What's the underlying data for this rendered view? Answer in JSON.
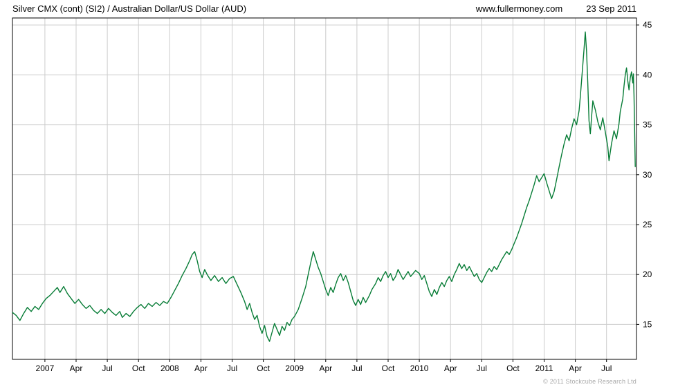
{
  "header": {
    "title": "Silver CMX (cont) (SI2) / Australian Dollar/US Dollar (AUD)",
    "website": "www.fullermoney.com",
    "date": "23 Sep 2011"
  },
  "footer": {
    "copyright": "© 2011 Stockcube Research Ltd"
  },
  "colors": {
    "line": "#077c36",
    "grid": "#cccccc",
    "axis": "#000000",
    "text": "#000000",
    "copyright": "#a9a9a9"
  },
  "chart_data": {
    "type": "line",
    "title": "Silver CMX (cont) (SI2) / Australian Dollar/US Dollar (AUD)",
    "xlabel": "",
    "ylabel": "",
    "grid": true,
    "legend_position": "none",
    "x_axis": {
      "range": [
        2006.74,
        2011.74
      ],
      "ticks": [
        {
          "pos": 2007.0,
          "label": "2007"
        },
        {
          "pos": 2007.25,
          "label": "Apr"
        },
        {
          "pos": 2007.5,
          "label": "Jul"
        },
        {
          "pos": 2007.75,
          "label": "Oct"
        },
        {
          "pos": 2008.0,
          "label": "2008"
        },
        {
          "pos": 2008.25,
          "label": "Apr"
        },
        {
          "pos": 2008.5,
          "label": "Jul"
        },
        {
          "pos": 2008.75,
          "label": "Oct"
        },
        {
          "pos": 2009.0,
          "label": "2009"
        },
        {
          "pos": 2009.25,
          "label": "Apr"
        },
        {
          "pos": 2009.5,
          "label": "Jul"
        },
        {
          "pos": 2009.75,
          "label": "Oct"
        },
        {
          "pos": 2010.0,
          "label": "2010"
        },
        {
          "pos": 2010.25,
          "label": "Apr"
        },
        {
          "pos": 2010.5,
          "label": "Jul"
        },
        {
          "pos": 2010.75,
          "label": "Oct"
        },
        {
          "pos": 2011.0,
          "label": "2011"
        },
        {
          "pos": 2011.25,
          "label": "Apr"
        },
        {
          "pos": 2011.5,
          "label": "Jul"
        }
      ]
    },
    "y_axis": {
      "side": "right",
      "range": [
        11.5,
        45.7
      ],
      "ticks": [
        15,
        20,
        25,
        30,
        35,
        40,
        45
      ]
    },
    "series": [
      {
        "name": "Silver CMX (cont) (SI2) in AUD",
        "color": "#077c36",
        "points": [
          [
            2006.74,
            16.2
          ],
          [
            2006.77,
            15.9
          ],
          [
            2006.8,
            15.4
          ],
          [
            2006.83,
            16.1
          ],
          [
            2006.86,
            16.7
          ],
          [
            2006.89,
            16.3
          ],
          [
            2006.92,
            16.8
          ],
          [
            2006.95,
            16.5
          ],
          [
            2006.98,
            17.1
          ],
          [
            2007.01,
            17.6
          ],
          [
            2007.04,
            17.9
          ],
          [
            2007.07,
            18.3
          ],
          [
            2007.1,
            18.7
          ],
          [
            2007.12,
            18.2
          ],
          [
            2007.15,
            18.8
          ],
          [
            2007.18,
            18.1
          ],
          [
            2007.21,
            17.6
          ],
          [
            2007.24,
            17.1
          ],
          [
            2007.27,
            17.5
          ],
          [
            2007.3,
            17.0
          ],
          [
            2007.33,
            16.6
          ],
          [
            2007.36,
            16.9
          ],
          [
            2007.39,
            16.4
          ],
          [
            2007.42,
            16.1
          ],
          [
            2007.45,
            16.5
          ],
          [
            2007.48,
            16.1
          ],
          [
            2007.51,
            16.6
          ],
          [
            2007.54,
            16.2
          ],
          [
            2007.57,
            15.9
          ],
          [
            2007.6,
            16.3
          ],
          [
            2007.62,
            15.7
          ],
          [
            2007.65,
            16.1
          ],
          [
            2007.68,
            15.8
          ],
          [
            2007.71,
            16.3
          ],
          [
            2007.74,
            16.7
          ],
          [
            2007.77,
            17.0
          ],
          [
            2007.8,
            16.6
          ],
          [
            2007.83,
            17.1
          ],
          [
            2007.86,
            16.8
          ],
          [
            2007.89,
            17.2
          ],
          [
            2007.92,
            16.9
          ],
          [
            2007.95,
            17.3
          ],
          [
            2007.98,
            17.1
          ],
          [
            2008.01,
            17.7
          ],
          [
            2008.04,
            18.4
          ],
          [
            2008.07,
            19.1
          ],
          [
            2008.1,
            19.9
          ],
          [
            2008.13,
            20.6
          ],
          [
            2008.16,
            21.4
          ],
          [
            2008.18,
            22.0
          ],
          [
            2008.2,
            22.3
          ],
          [
            2008.22,
            21.4
          ],
          [
            2008.24,
            20.3
          ],
          [
            2008.26,
            19.7
          ],
          [
            2008.28,
            20.5
          ],
          [
            2008.3,
            20.0
          ],
          [
            2008.33,
            19.4
          ],
          [
            2008.36,
            19.9
          ],
          [
            2008.39,
            19.3
          ],
          [
            2008.42,
            19.7
          ],
          [
            2008.45,
            19.1
          ],
          [
            2008.48,
            19.6
          ],
          [
            2008.51,
            19.8
          ],
          [
            2008.54,
            19.0
          ],
          [
            2008.57,
            18.2
          ],
          [
            2008.6,
            17.3
          ],
          [
            2008.62,
            16.5
          ],
          [
            2008.64,
            17.1
          ],
          [
            2008.66,
            16.2
          ],
          [
            2008.68,
            15.5
          ],
          [
            2008.7,
            15.9
          ],
          [
            2008.72,
            14.8
          ],
          [
            2008.74,
            14.1
          ],
          [
            2008.76,
            14.9
          ],
          [
            2008.78,
            13.8
          ],
          [
            2008.8,
            13.3
          ],
          [
            2008.82,
            14.2
          ],
          [
            2008.84,
            15.1
          ],
          [
            2008.86,
            14.5
          ],
          [
            2008.88,
            13.9
          ],
          [
            2008.9,
            14.8
          ],
          [
            2008.92,
            14.4
          ],
          [
            2008.94,
            15.2
          ],
          [
            2008.96,
            14.9
          ],
          [
            2008.98,
            15.5
          ],
          [
            2009.0,
            15.8
          ],
          [
            2009.03,
            16.5
          ],
          [
            2009.06,
            17.6
          ],
          [
            2009.09,
            18.8
          ],
          [
            2009.11,
            20.0
          ],
          [
            2009.13,
            21.2
          ],
          [
            2009.15,
            22.3
          ],
          [
            2009.17,
            21.5
          ],
          [
            2009.19,
            20.7
          ],
          [
            2009.21,
            20.1
          ],
          [
            2009.23,
            19.3
          ],
          [
            2009.25,
            18.5
          ],
          [
            2009.27,
            17.9
          ],
          [
            2009.29,
            18.7
          ],
          [
            2009.31,
            18.2
          ],
          [
            2009.33,
            19.0
          ],
          [
            2009.35,
            19.7
          ],
          [
            2009.37,
            20.1
          ],
          [
            2009.39,
            19.4
          ],
          [
            2009.41,
            19.9
          ],
          [
            2009.43,
            19.2
          ],
          [
            2009.45,
            18.3
          ],
          [
            2009.47,
            17.4
          ],
          [
            2009.49,
            16.9
          ],
          [
            2009.51,
            17.5
          ],
          [
            2009.53,
            17.0
          ],
          [
            2009.55,
            17.7
          ],
          [
            2009.57,
            17.2
          ],
          [
            2009.6,
            17.9
          ],
          [
            2009.62,
            18.5
          ],
          [
            2009.65,
            19.1
          ],
          [
            2009.67,
            19.7
          ],
          [
            2009.69,
            19.3
          ],
          [
            2009.71,
            19.9
          ],
          [
            2009.73,
            20.3
          ],
          [
            2009.75,
            19.7
          ],
          [
            2009.77,
            20.1
          ],
          [
            2009.79,
            19.4
          ],
          [
            2009.81,
            19.8
          ],
          [
            2009.83,
            20.5
          ],
          [
            2009.85,
            20.0
          ],
          [
            2009.87,
            19.5
          ],
          [
            2009.89,
            19.9
          ],
          [
            2009.91,
            20.3
          ],
          [
            2009.93,
            19.8
          ],
          [
            2009.95,
            20.1
          ],
          [
            2009.97,
            20.4
          ],
          [
            2010.0,
            20.1
          ],
          [
            2010.02,
            19.5
          ],
          [
            2010.04,
            19.9
          ],
          [
            2010.06,
            19.1
          ],
          [
            2010.08,
            18.3
          ],
          [
            2010.1,
            17.8
          ],
          [
            2010.12,
            18.5
          ],
          [
            2010.14,
            18.0
          ],
          [
            2010.16,
            18.7
          ],
          [
            2010.18,
            19.2
          ],
          [
            2010.2,
            18.8
          ],
          [
            2010.22,
            19.4
          ],
          [
            2010.24,
            19.8
          ],
          [
            2010.26,
            19.3
          ],
          [
            2010.28,
            20.0
          ],
          [
            2010.3,
            20.5
          ],
          [
            2010.32,
            21.1
          ],
          [
            2010.34,
            20.6
          ],
          [
            2010.36,
            21.0
          ],
          [
            2010.38,
            20.4
          ],
          [
            2010.4,
            20.8
          ],
          [
            2010.42,
            20.3
          ],
          [
            2010.44,
            19.8
          ],
          [
            2010.46,
            20.1
          ],
          [
            2010.48,
            19.5
          ],
          [
            2010.5,
            19.2
          ],
          [
            2010.52,
            19.7
          ],
          [
            2010.54,
            20.2
          ],
          [
            2010.56,
            20.6
          ],
          [
            2010.58,
            20.3
          ],
          [
            2010.6,
            20.8
          ],
          [
            2010.62,
            20.5
          ],
          [
            2010.64,
            21.0
          ],
          [
            2010.66,
            21.5
          ],
          [
            2010.68,
            21.9
          ],
          [
            2010.7,
            22.3
          ],
          [
            2010.72,
            22.0
          ],
          [
            2010.74,
            22.5
          ],
          [
            2010.76,
            23.1
          ],
          [
            2010.78,
            23.7
          ],
          [
            2010.8,
            24.4
          ],
          [
            2010.82,
            25.1
          ],
          [
            2010.84,
            25.9
          ],
          [
            2010.86,
            26.7
          ],
          [
            2010.88,
            27.4
          ],
          [
            2010.9,
            28.2
          ],
          [
            2010.92,
            29.0
          ],
          [
            2010.94,
            29.9
          ],
          [
            2010.96,
            29.3
          ],
          [
            2010.98,
            29.7
          ],
          [
            2011.0,
            30.1
          ],
          [
            2011.02,
            29.2
          ],
          [
            2011.04,
            28.4
          ],
          [
            2011.06,
            27.6
          ],
          [
            2011.08,
            28.3
          ],
          [
            2011.1,
            29.5
          ],
          [
            2011.12,
            30.8
          ],
          [
            2011.14,
            32.0
          ],
          [
            2011.16,
            33.1
          ],
          [
            2011.18,
            34.0
          ],
          [
            2011.2,
            33.4
          ],
          [
            2011.22,
            34.6
          ],
          [
            2011.24,
            35.6
          ],
          [
            2011.26,
            35.0
          ],
          [
            2011.28,
            36.4
          ],
          [
            2011.29,
            37.8
          ],
          [
            2011.3,
            39.4
          ],
          [
            2011.31,
            41.0
          ],
          [
            2011.32,
            42.6
          ],
          [
            2011.33,
            44.3
          ],
          [
            2011.34,
            42.4
          ],
          [
            2011.35,
            39.2
          ],
          [
            2011.36,
            35.4
          ],
          [
            2011.37,
            34.1
          ],
          [
            2011.38,
            35.8
          ],
          [
            2011.39,
            37.4
          ],
          [
            2011.41,
            36.5
          ],
          [
            2011.43,
            35.3
          ],
          [
            2011.45,
            34.5
          ],
          [
            2011.47,
            35.7
          ],
          [
            2011.49,
            34.3
          ],
          [
            2011.51,
            32.8
          ],
          [
            2011.52,
            31.4
          ],
          [
            2011.54,
            33.1
          ],
          [
            2011.56,
            34.4
          ],
          [
            2011.58,
            33.6
          ],
          [
            2011.6,
            35.1
          ],
          [
            2011.61,
            36.3
          ],
          [
            2011.63,
            37.6
          ],
          [
            2011.64,
            38.9
          ],
          [
            2011.65,
            40.0
          ],
          [
            2011.66,
            40.7
          ],
          [
            2011.67,
            39.4
          ],
          [
            2011.68,
            38.5
          ],
          [
            2011.69,
            39.7
          ],
          [
            2011.7,
            40.3
          ],
          [
            2011.71,
            39.2
          ],
          [
            2011.715,
            40.1
          ],
          [
            2011.72,
            38.0
          ],
          [
            2011.725,
            34.5
          ],
          [
            2011.73,
            30.8
          ]
        ]
      }
    ]
  }
}
